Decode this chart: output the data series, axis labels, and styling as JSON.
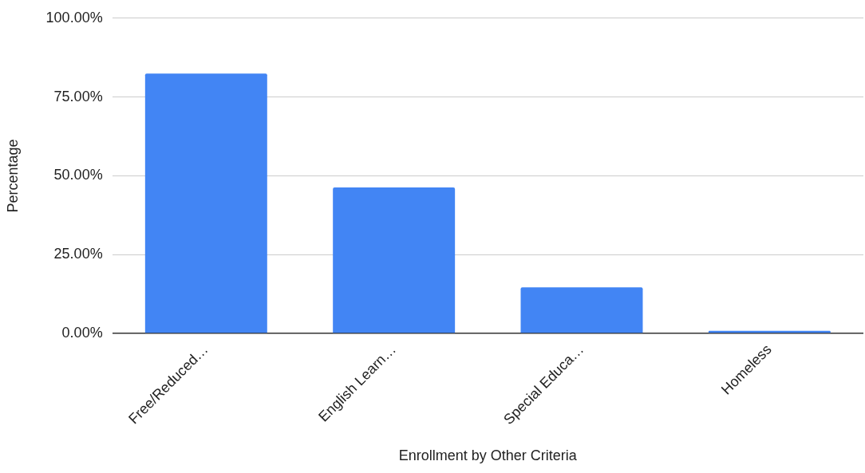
{
  "chart_data": {
    "type": "bar",
    "xlabel": "Enrollment by Other Criteria",
    "ylabel": "Percentage",
    "categories": [
      "Free/Reduced…",
      "English Learn…",
      "Special Educa…",
      "Homeless"
    ],
    "values": [
      82.4,
      46.3,
      14.6,
      0.8
    ],
    "color": "#4285f4",
    "ylim": [
      0,
      100
    ],
    "yticks": [
      {
        "value": 0,
        "label": "0.00%"
      },
      {
        "value": 25,
        "label": "25.00%"
      },
      {
        "value": 50,
        "label": "50.00%"
      },
      {
        "value": 75,
        "label": "75.00%"
      },
      {
        "value": 100,
        "label": "100.00%"
      }
    ],
    "grid": "y",
    "legend": false
  }
}
